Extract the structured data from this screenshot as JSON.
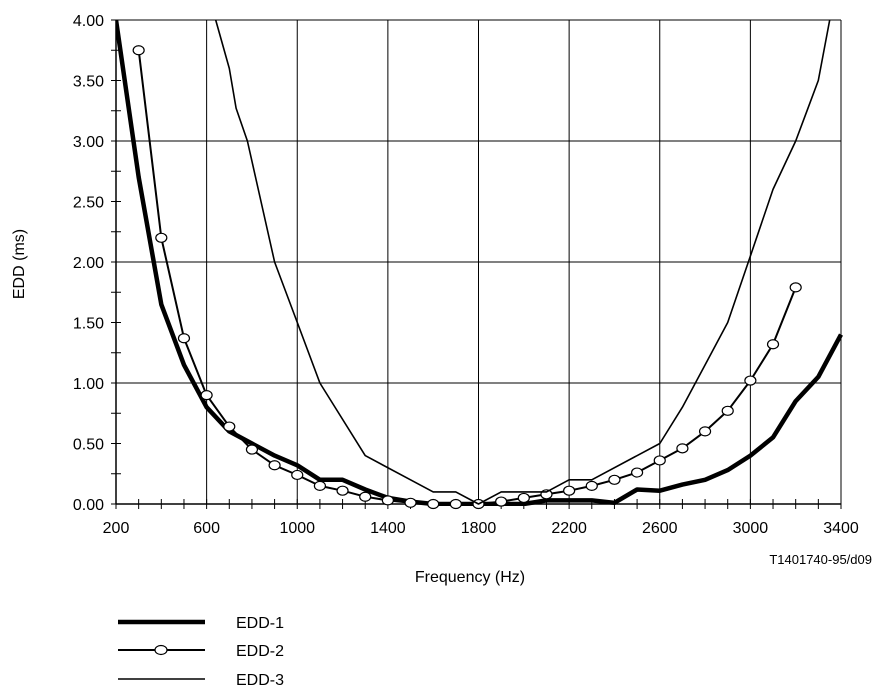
{
  "chart_data": {
    "type": "line",
    "xlabel": "Frequency (Hz)",
    "ylabel": "EDD (ms)",
    "xlim": [
      200,
      3400
    ],
    "ylim": [
      0,
      4
    ],
    "x_ticks": [
      "200",
      "600",
      "1000",
      "1400",
      "1800",
      "2200",
      "2600",
      "3000",
      "3400"
    ],
    "y_ticks": [
      "0.00",
      "0.50",
      "1.00",
      "1.50",
      "2.00",
      "2.50",
      "3.00",
      "3.50",
      "4.00"
    ],
    "grid": "vertical and horizontal major lines at every 400 Hz and 1.00 ms",
    "legend_position": "bottom-left",
    "figure_id": "T1401740-95/d09",
    "series": [
      {
        "name": "EDD-1",
        "style": "thick",
        "points": [
          [
            200,
            4.0
          ],
          [
            300,
            2.7
          ],
          [
            400,
            1.65
          ],
          [
            500,
            1.15
          ],
          [
            600,
            0.8
          ],
          [
            700,
            0.6
          ],
          [
            800,
            0.5
          ],
          [
            900,
            0.4
          ],
          [
            1000,
            0.32
          ],
          [
            1100,
            0.2
          ],
          [
            1200,
            0.2
          ],
          [
            1300,
            0.12
          ],
          [
            1400,
            0.05
          ],
          [
            1500,
            0.02
          ],
          [
            1600,
            0.0
          ],
          [
            1700,
            0.0
          ],
          [
            1800,
            0.0
          ],
          [
            1900,
            0.0
          ],
          [
            2000,
            0.0
          ],
          [
            2100,
            0.03
          ],
          [
            2200,
            0.03
          ],
          [
            2300,
            0.03
          ],
          [
            2400,
            0.01
          ],
          [
            2500,
            0.12
          ],
          [
            2600,
            0.11
          ],
          [
            2700,
            0.16
          ],
          [
            2800,
            0.2
          ],
          [
            2900,
            0.28
          ],
          [
            3000,
            0.4
          ],
          [
            3100,
            0.55
          ],
          [
            3200,
            0.85
          ],
          [
            3300,
            1.05
          ],
          [
            3400,
            1.4
          ]
        ]
      },
      {
        "name": "EDD-2",
        "style": "circle-markers",
        "points": [
          [
            300,
            3.75
          ],
          [
            400,
            2.2
          ],
          [
            500,
            1.37
          ],
          [
            600,
            0.9
          ],
          [
            700,
            0.64
          ],
          [
            800,
            0.45
          ],
          [
            900,
            0.32
          ],
          [
            1000,
            0.24
          ],
          [
            1100,
            0.15
          ],
          [
            1200,
            0.11
          ],
          [
            1300,
            0.06
          ],
          [
            1400,
            0.03
          ],
          [
            1500,
            0.01
          ],
          [
            1600,
            0.0
          ],
          [
            1700,
            0.0
          ],
          [
            1800,
            0.0
          ],
          [
            1900,
            0.02
          ],
          [
            2000,
            0.05
          ],
          [
            2100,
            0.08
          ],
          [
            2200,
            0.11
          ],
          [
            2300,
            0.15
          ],
          [
            2400,
            0.2
          ],
          [
            2500,
            0.26
          ],
          [
            2600,
            0.36
          ],
          [
            2700,
            0.46
          ],
          [
            2800,
            0.6
          ],
          [
            2900,
            0.77
          ],
          [
            3000,
            1.02
          ],
          [
            3100,
            1.32
          ],
          [
            3200,
            1.79
          ]
        ]
      },
      {
        "name": "EDD-3",
        "style": "thin",
        "points": [
          [
            640,
            4.0
          ],
          [
            700,
            3.6
          ],
          [
            730,
            3.27
          ],
          [
            780,
            3.0
          ],
          [
            900,
            2.0
          ],
          [
            1000,
            1.5
          ],
          [
            1100,
            1.0
          ],
          [
            1300,
            0.4
          ],
          [
            1500,
            0.2
          ],
          [
            1600,
            0.1
          ],
          [
            1700,
            0.1
          ],
          [
            1800,
            0.0
          ],
          [
            1900,
            0.1
          ],
          [
            2000,
            0.1
          ],
          [
            2100,
            0.1
          ],
          [
            2200,
            0.2
          ],
          [
            2300,
            0.2
          ],
          [
            2600,
            0.5
          ],
          [
            2700,
            0.8
          ],
          [
            2800,
            1.15
          ],
          [
            2900,
            1.5
          ],
          [
            3000,
            2.05
          ],
          [
            3100,
            2.6
          ],
          [
            3200,
            3.0
          ],
          [
            3250,
            3.25
          ],
          [
            3300,
            3.5
          ],
          [
            3350,
            4.0
          ]
        ]
      }
    ]
  }
}
